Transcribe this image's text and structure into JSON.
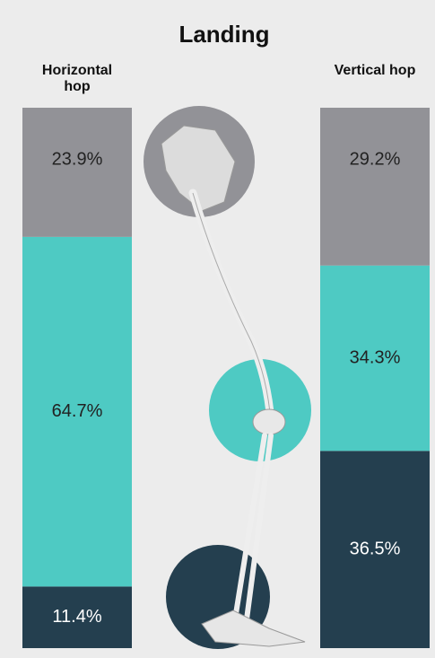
{
  "chart_data": {
    "type": "bar",
    "stacked": true,
    "title": "Landing",
    "categories": [
      "Horizontal hop",
      "Vertical hop"
    ],
    "series": [
      {
        "color": "#243f4f",
        "values": [
          11.4,
          36.5
        ],
        "value_labels": [
          "11.4%",
          "36.5%"
        ]
      },
      {
        "color": "#4ecac3",
        "values": [
          64.7,
          34.3
        ],
        "value_labels": [
          "64.7%",
          "34.3%"
        ]
      },
      {
        "color": "#929297",
        "values": [
          23.9,
          29.2
        ],
        "value_labels": [
          "23.9%",
          "29.2%"
        ]
      }
    ],
    "ylim": [
      0,
      100
    ]
  }
}
